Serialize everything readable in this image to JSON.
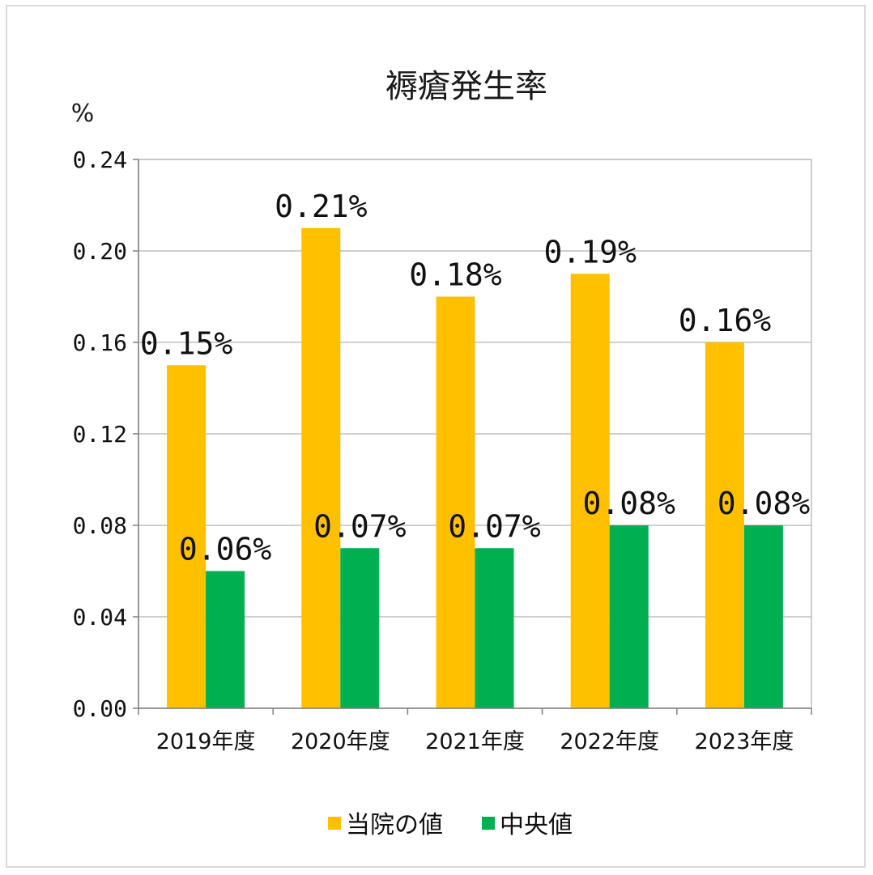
{
  "chart_data": {
    "type": "bar",
    "title": "褥瘡発生率",
    "ylabel": "%",
    "ylim": [
      0,
      0.24
    ],
    "yticks": [
      "0.00",
      "0.04",
      "0.08",
      "0.12",
      "0.16",
      "0.20",
      "0.24"
    ],
    "ytick_values": [
      0,
      0.04,
      0.08,
      0.12,
      0.16,
      0.2,
      0.24
    ],
    "categories": [
      "2019年度",
      "2020年度",
      "2021年度",
      "2022年度",
      "2023年度"
    ],
    "series": [
      {
        "name": "当院の値",
        "color": "#ffc000",
        "values": [
          0.15,
          0.21,
          0.18,
          0.19,
          0.16
        ],
        "labels": [
          "0.15%",
          "0.21%",
          "0.18%",
          "0.19%",
          "0.16%"
        ]
      },
      {
        "name": "中央値",
        "color": "#00b050",
        "values": [
          0.06,
          0.07,
          0.07,
          0.08,
          0.08
        ],
        "labels": [
          "0.06%",
          "0.07%",
          "0.07%",
          "0.08%",
          "0.08%"
        ]
      }
    ],
    "grid": true,
    "legend_position": "bottom"
  }
}
